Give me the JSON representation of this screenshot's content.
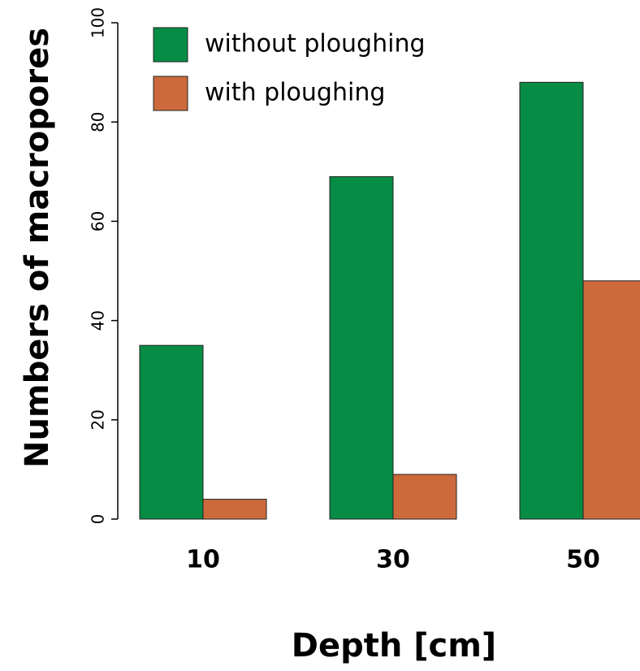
{
  "chart_data": {
    "type": "bar",
    "xlabel": "Depth [cm]",
    "ylabel": "Numbers of macropores",
    "categories": [
      "10",
      "30",
      "50"
    ],
    "series": [
      {
        "name": "without ploughing",
        "color": "#068c45",
        "values": [
          35,
          69,
          88
        ]
      },
      {
        "name": "with ploughing",
        "color": "#cc6a3c",
        "values": [
          4,
          9,
          48
        ]
      }
    ],
    "ylim": [
      0,
      100
    ],
    "yticks": [
      0,
      20,
      40,
      60,
      80,
      100
    ],
    "grid": false,
    "legend": "top-left"
  }
}
